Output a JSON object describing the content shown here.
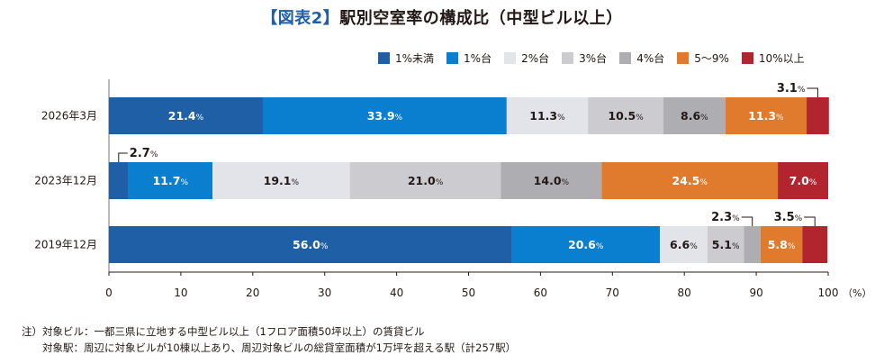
{
  "title": {
    "tag": "【図表2】",
    "main": "駅別空室率の構成比（中型ビル以上）"
  },
  "colors": [
    "#1f5fa6",
    "#0b7fcf",
    "#e3e3ea",
    "#cbcbd0",
    "#aeaeb2",
    "#e07a2c",
    "#b3252e"
  ],
  "chart_data": {
    "type": "bar",
    "orientation": "horizontal",
    "stacked": true,
    "categories": [
      "2026年3月",
      "2023年12月",
      "2019年12月"
    ],
    "series": [
      {
        "name": "1%未満",
        "values": [
          21.4,
          2.7,
          56.0
        ]
      },
      {
        "name": "1%台",
        "values": [
          33.9,
          11.7,
          20.6
        ]
      },
      {
        "name": "2%台",
        "values": [
          11.3,
          19.1,
          6.6
        ]
      },
      {
        "name": "3%台",
        "values": [
          10.5,
          21.0,
          5.1
        ]
      },
      {
        "name": "4%台",
        "values": [
          8.6,
          14.0,
          2.3
        ]
      },
      {
        "name": "5〜9%",
        "values": [
          11.3,
          24.5,
          5.8
        ]
      },
      {
        "name": "10%以上",
        "values": [
          3.1,
          7.0,
          3.5
        ]
      }
    ],
    "xlim": [
      0,
      100
    ],
    "xticks": [
      "0",
      "10",
      "20",
      "30",
      "40",
      "50",
      "60",
      "70",
      "80",
      "90",
      "100"
    ],
    "xunit": "（%）",
    "value_suffix": "%",
    "legend_position": "top-right",
    "grid": false
  },
  "notes": {
    "line1": "注）対象ビル：一都三県に立地する中型ビル以上（1フロア面積50坪以上）の賃貸ビル",
    "line2": "　　対象駅：周辺に対象ビルが10棟以上あり、周辺対象ビルの総貸室面積が1万坪を超える駅（計257駅）"
  }
}
